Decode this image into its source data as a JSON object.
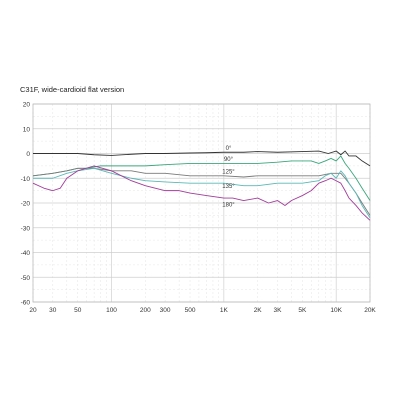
{
  "chart_data": {
    "type": "line",
    "title": "C31F, wide-cardioid flat version",
    "x_scale": "log",
    "xlim": [
      20,
      20000
    ],
    "ylim": [
      -60,
      20
    ],
    "x_ticks": [
      {
        "v": 20,
        "label": "20"
      },
      {
        "v": 30,
        "label": "30"
      },
      {
        "v": 50,
        "label": "50"
      },
      {
        "v": 100,
        "label": "100"
      },
      {
        "v": 200,
        "label": "200"
      },
      {
        "v": 300,
        "label": "300"
      },
      {
        "v": 500,
        "label": "500"
      },
      {
        "v": 1000,
        "label": "1K"
      },
      {
        "v": 2000,
        "label": "2K"
      },
      {
        "v": 3000,
        "label": "3K"
      },
      {
        "v": 5000,
        "label": "5K"
      },
      {
        "v": 10000,
        "label": "10K"
      },
      {
        "v": 20000,
        "label": "20K"
      }
    ],
    "y_ticks": [
      20,
      10,
      0,
      -10,
      -20,
      -30,
      -40,
      -50,
      -60
    ],
    "grid": true,
    "series": [
      {
        "name": "0°",
        "color": "#333333",
        "label_at": [
          1100,
          1.5
        ],
        "points": [
          [
            20,
            0
          ],
          [
            30,
            0
          ],
          [
            50,
            0
          ],
          [
            70,
            -0.5
          ],
          [
            100,
            -0.8
          ],
          [
            150,
            -0.3
          ],
          [
            200,
            0
          ],
          [
            300,
            0
          ],
          [
            500,
            0.2
          ],
          [
            700,
            0.3
          ],
          [
            1000,
            0.5
          ],
          [
            1500,
            0.5
          ],
          [
            2000,
            0.8
          ],
          [
            3000,
            0.5
          ],
          [
            5000,
            0.8
          ],
          [
            7000,
            1
          ],
          [
            8500,
            0
          ],
          [
            10000,
            1
          ],
          [
            11000,
            -0.5
          ],
          [
            12000,
            1
          ],
          [
            13000,
            -1
          ],
          [
            15000,
            -1
          ],
          [
            17000,
            -3
          ],
          [
            20000,
            -5
          ]
        ]
      },
      {
        "name": "90°",
        "color": "#3aa77c",
        "label_at": [
          1100,
          -3
        ],
        "points": [
          [
            20,
            -9
          ],
          [
            30,
            -8
          ],
          [
            40,
            -7
          ],
          [
            50,
            -6
          ],
          [
            60,
            -6
          ],
          [
            80,
            -5
          ],
          [
            100,
            -5
          ],
          [
            150,
            -5
          ],
          [
            200,
            -5
          ],
          [
            300,
            -4.5
          ],
          [
            500,
            -4
          ],
          [
            700,
            -4
          ],
          [
            1000,
            -4
          ],
          [
            1500,
            -4
          ],
          [
            2000,
            -4
          ],
          [
            3000,
            -3.5
          ],
          [
            4000,
            -3
          ],
          [
            5000,
            -3
          ],
          [
            6000,
            -3
          ],
          [
            7000,
            -4
          ],
          [
            8000,
            -3
          ],
          [
            9000,
            -2
          ],
          [
            10000,
            -3
          ],
          [
            11000,
            -1
          ],
          [
            12000,
            -4
          ],
          [
            13000,
            -6
          ],
          [
            15000,
            -10
          ],
          [
            17000,
            -14
          ],
          [
            20000,
            -19
          ]
        ]
      },
      {
        "name": "125°",
        "color": "#7a7a7a",
        "label_at": [
          1100,
          -8
        ],
        "points": [
          [
            20,
            -9
          ],
          [
            30,
            -8
          ],
          [
            40,
            -7
          ],
          [
            50,
            -6
          ],
          [
            70,
            -6
          ],
          [
            100,
            -7
          ],
          [
            150,
            -7
          ],
          [
            200,
            -8
          ],
          [
            300,
            -8
          ],
          [
            500,
            -9
          ],
          [
            700,
            -9
          ],
          [
            1000,
            -9
          ],
          [
            1500,
            -9.5
          ],
          [
            2000,
            -9
          ],
          [
            3000,
            -9
          ],
          [
            5000,
            -9
          ],
          [
            7000,
            -9
          ],
          [
            9000,
            -8
          ],
          [
            10000,
            -8
          ],
          [
            11000,
            -8
          ],
          [
            12000,
            -10
          ],
          [
            13000,
            -12
          ],
          [
            15000,
            -16
          ],
          [
            17000,
            -20
          ],
          [
            20000,
            -25
          ]
        ]
      },
      {
        "name": "135°",
        "color": "#5ab8b8",
        "label_at": [
          1100,
          -14
        ],
        "points": [
          [
            20,
            -10
          ],
          [
            25,
            -10
          ],
          [
            30,
            -10
          ],
          [
            40,
            -8
          ],
          [
            50,
            -7
          ],
          [
            70,
            -6
          ],
          [
            100,
            -8
          ],
          [
            150,
            -10
          ],
          [
            200,
            -11
          ],
          [
            300,
            -11.5
          ],
          [
            500,
            -12
          ],
          [
            700,
            -12
          ],
          [
            1000,
            -12
          ],
          [
            1500,
            -13
          ],
          [
            2000,
            -13
          ],
          [
            3000,
            -12
          ],
          [
            4000,
            -12
          ],
          [
            5000,
            -12
          ],
          [
            7000,
            -11
          ],
          [
            8000,
            -9
          ],
          [
            9000,
            -8
          ],
          [
            10000,
            -10
          ],
          [
            11000,
            -7
          ],
          [
            12000,
            -9
          ],
          [
            13000,
            -12
          ],
          [
            15000,
            -16
          ],
          [
            17000,
            -21
          ],
          [
            20000,
            -26
          ]
        ]
      },
      {
        "name": "180°",
        "color": "#a23c9a",
        "label_at": [
          1100,
          -21.5
        ],
        "points": [
          [
            20,
            -12
          ],
          [
            25,
            -14
          ],
          [
            30,
            -15
          ],
          [
            35,
            -14
          ],
          [
            40,
            -10
          ],
          [
            50,
            -7
          ],
          [
            70,
            -5
          ],
          [
            100,
            -7
          ],
          [
            150,
            -11
          ],
          [
            200,
            -13
          ],
          [
            300,
            -15
          ],
          [
            400,
            -15
          ],
          [
            500,
            -16
          ],
          [
            700,
            -17
          ],
          [
            1000,
            -18
          ],
          [
            1200,
            -18
          ],
          [
            1500,
            -19
          ],
          [
            2000,
            -18
          ],
          [
            2500,
            -20
          ],
          [
            3000,
            -19
          ],
          [
            3500,
            -21
          ],
          [
            4000,
            -19
          ],
          [
            5000,
            -17
          ],
          [
            6000,
            -15
          ],
          [
            7000,
            -12
          ],
          [
            8000,
            -11
          ],
          [
            9000,
            -10
          ],
          [
            10000,
            -11
          ],
          [
            11000,
            -12
          ],
          [
            12000,
            -15
          ],
          [
            13000,
            -18
          ],
          [
            15000,
            -21
          ],
          [
            17000,
            -24
          ],
          [
            20000,
            -27
          ]
        ]
      }
    ]
  }
}
